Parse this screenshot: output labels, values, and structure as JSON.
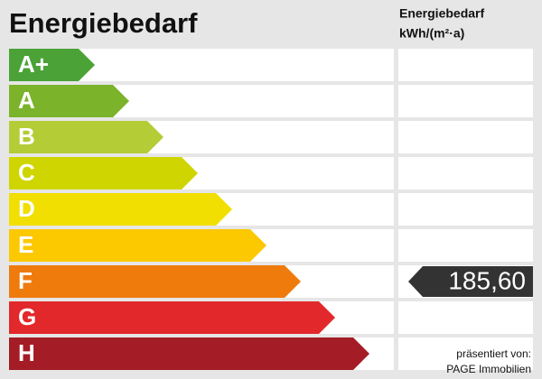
{
  "title": "Energiebedarf",
  "column_header": {
    "line1": "Energiebedarf",
    "line2": "kWh/(m²·a)"
  },
  "classes": [
    {
      "label": "A+",
      "color": "#4ba237"
    },
    {
      "label": "A",
      "color": "#7bb32a"
    },
    {
      "label": "B",
      "color": "#b4cc36"
    },
    {
      "label": "C",
      "color": "#cfd500"
    },
    {
      "label": "D",
      "color": "#f0df00"
    },
    {
      "label": "E",
      "color": "#fcc800"
    },
    {
      "label": "F",
      "color": "#ee7b0c",
      "value": "185,60"
    },
    {
      "label": "G",
      "color": "#e2282a"
    },
    {
      "label": "H",
      "color": "#a41c25"
    }
  ],
  "footer": {
    "line1": "präsentiert von:",
    "line2": "PAGE Immobilien"
  }
}
